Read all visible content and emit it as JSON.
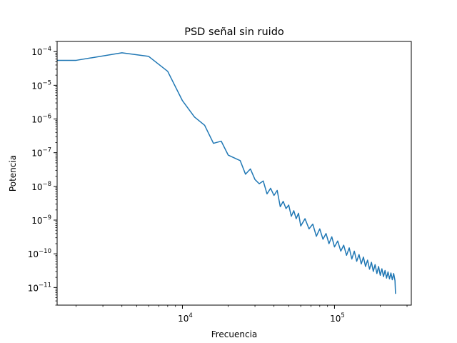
{
  "chart_data": {
    "type": "line",
    "title": "PSD señal sin ruido",
    "xlabel": "Frecuencia",
    "ylabel": "Potencia",
    "xscale": "log",
    "yscale": "log",
    "xlim": [
      1500,
      320000
    ],
    "ylim": [
      3e-12,
      0.0002
    ],
    "grid": false,
    "line_color": "#1f77b4",
    "x_ticks": [
      {
        "value": 10000,
        "base": "10",
        "exp": "4"
      },
      {
        "value": 100000,
        "base": "10",
        "exp": "5"
      }
    ],
    "y_ticks": [
      {
        "value": 0.0001,
        "base": "10",
        "exp": "−4"
      },
      {
        "value": 1e-05,
        "base": "10",
        "exp": "−5"
      },
      {
        "value": 1e-06,
        "base": "10",
        "exp": "−6"
      },
      {
        "value": 1e-07,
        "base": "10",
        "exp": "−7"
      },
      {
        "value": 1e-08,
        "base": "10",
        "exp": "−8"
      },
      {
        "value": 1e-09,
        "base": "10",
        "exp": "−9"
      },
      {
        "value": 1e-10,
        "base": "10",
        "exp": "−10"
      },
      {
        "value": 1e-11,
        "base": "10",
        "exp": "−11"
      }
    ],
    "series": [
      {
        "x": [
          1500,
          2000,
          4000,
          6000,
          8000,
          10000,
          12000,
          14000,
          16000,
          18000,
          20000,
          24000,
          26000,
          28000,
          30000,
          32000,
          34000,
          36000,
          38000,
          40000,
          42000,
          44000,
          46000,
          48000,
          50000,
          52000,
          54000,
          56000,
          58000,
          60000,
          64000,
          68000,
          72000,
          76000,
          80000,
          84000,
          88000,
          92000,
          96000,
          100000,
          105000,
          110000,
          115000,
          120000,
          125000,
          130000,
          135000,
          140000,
          145000,
          150000,
          155000,
          160000,
          165000,
          170000,
          175000,
          180000,
          185000,
          190000,
          195000,
          200000,
          205000,
          210000,
          215000,
          220000,
          225000,
          230000,
          235000,
          240000,
          245000,
          250000,
          252000
        ],
        "y": [
          5.5e-05,
          5.5e-05,
          9.2e-05,
          7.2e-05,
          2.6e-05,
          3.5e-06,
          1.15e-06,
          6.5e-07,
          1.9e-07,
          2.2e-07,
          8.5e-08,
          5.8e-08,
          2.3e-08,
          3.3e-08,
          1.6e-08,
          1.2e-08,
          1.45e-08,
          6e-09,
          8.8e-09,
          5.4e-09,
          7.6e-09,
          2.5e-09,
          3.6e-09,
          2.2e-09,
          2.8e-09,
          1.3e-09,
          1.9e-09,
          1.1e-09,
          1.6e-09,
          6.7e-10,
          1.1e-09,
          5.5e-10,
          7.6e-10,
          3.3e-10,
          5.5e-10,
          2.7e-10,
          4e-10,
          2e-10,
          3.2e-10,
          1.6e-10,
          2.4e-10,
          1.2e-10,
          1.8e-10,
          9e-11,
          1.5e-10,
          7e-11,
          1.2e-10,
          6e-11,
          9.5e-11,
          5e-11,
          8e-11,
          4.2e-11,
          6.5e-11,
          3.5e-11,
          5.6e-11,
          3e-11,
          4.8e-11,
          2.6e-11,
          4.2e-11,
          2.3e-11,
          3.6e-11,
          2.1e-11,
          3.2e-11,
          1.9e-11,
          2.9e-11,
          1.8e-11,
          2.7e-11,
          1.7e-11,
          2.6e-11,
          1.6e-11,
          6.5e-12
        ]
      }
    ]
  }
}
